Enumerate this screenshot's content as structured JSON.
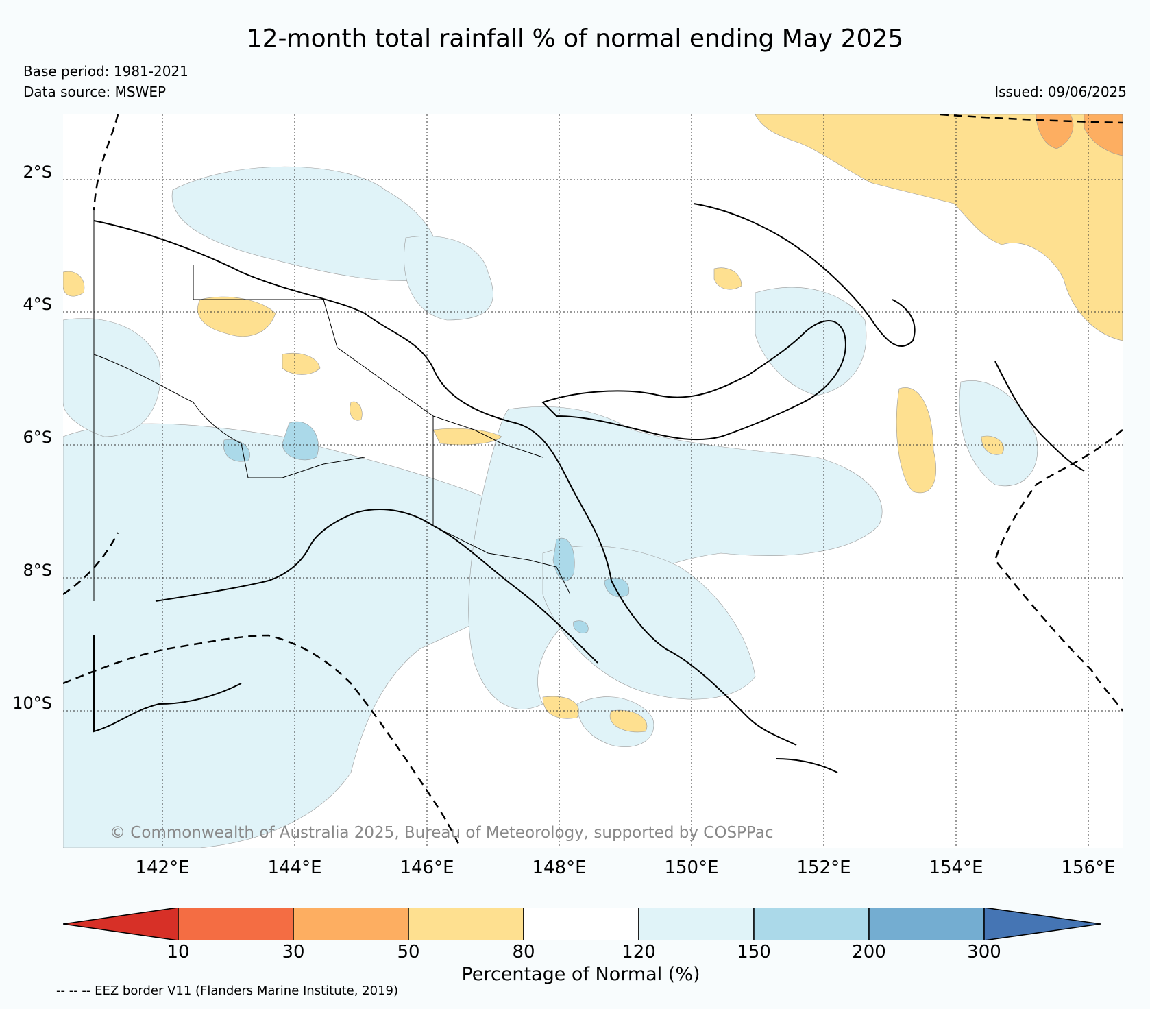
{
  "title": "12-month total rainfall % of normal ending May 2025",
  "base_period": "Base period: 1981-2021",
  "data_source": "Data source: MSWEP",
  "issued": "Issued: 09/06/2025",
  "credit": "© Commonwealth of Australia 2025, Bureau of Meteorology, supported by COSPPac",
  "lat_labels": [
    "2°S",
    "4°S",
    "6°S",
    "8°S",
    "10°S"
  ],
  "lon_labels": [
    "142°E",
    "144°E",
    "146°E",
    "148°E",
    "150°E",
    "152°E",
    "154°E",
    "156°E"
  ],
  "colorbar": {
    "title": "Percentage of Normal (%)",
    "ticks": [
      "10",
      "30",
      "50",
      "80",
      "120",
      "150",
      "200",
      "300"
    ],
    "colors": [
      "#d73027",
      "#f46d43",
      "#fdae61",
      "#fee090",
      "#ffffff",
      "#e0f3f8",
      "#abd9e9",
      "#74add1",
      "#4575b4"
    ]
  },
  "eez_note": "-- -- -- EEZ border V11 (Flanders Marine Institute, 2019)"
}
